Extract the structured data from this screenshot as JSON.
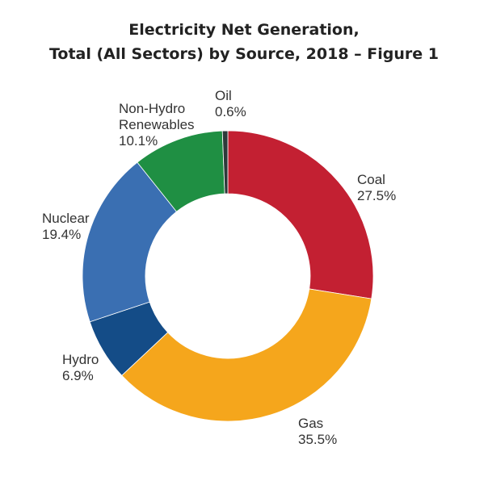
{
  "chart_data": {
    "type": "pie",
    "title": "Electricity Net Generation,",
    "subtitle": "Total (All Sectors) by Source, 2018 – Figure 1",
    "donut": true,
    "slices": [
      {
        "label": "Coal",
        "label_lines": [
          "Coal"
        ],
        "value": 27.5,
        "value_text": "27.5%",
        "color": "#c32032"
      },
      {
        "label": "Gas",
        "label_lines": [
          "Gas"
        ],
        "value": 35.5,
        "value_text": "35.5%",
        "color": "#f5a61c"
      },
      {
        "label": "Hydro",
        "label_lines": [
          "Hydro"
        ],
        "value": 6.9,
        "value_text": "6.9%",
        "color": "#144c87"
      },
      {
        "label": "Nuclear",
        "label_lines": [
          "Nuclear"
        ],
        "value": 19.4,
        "value_text": "19.4%",
        "color": "#3a6fb2"
      },
      {
        "label": "Non-Hydro Renewables",
        "label_lines": [
          "Non-Hydro",
          "Renewables"
        ],
        "value": 10.1,
        "value_text": "10.1%",
        "color": "#1f8f43"
      },
      {
        "label": "Oil",
        "label_lines": [
          "Oil"
        ],
        "value": 0.6,
        "value_text": "0.6%",
        "color": "#2e3a3a"
      }
    ]
  }
}
